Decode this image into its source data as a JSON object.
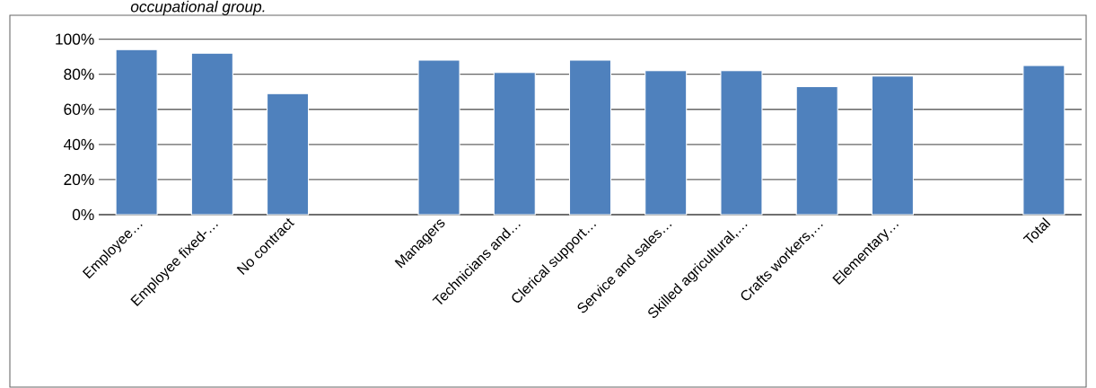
{
  "chart_data": {
    "type": "bar",
    "title": "occupational group.",
    "categories": [
      "Employee…",
      "Employee fixed-…",
      "No contract",
      null,
      "Managers",
      "Technicians and…",
      "Clerical support…",
      "Service and sales…",
      "Skilled agricultural,…",
      "Crafts workers,…",
      "Elementary…",
      null,
      "Total"
    ],
    "values": [
      94,
      92,
      69,
      null,
      88,
      81,
      88,
      82,
      82,
      73,
      79,
      null,
      85
    ],
    "color": "#4f81bd",
    "ylim": [
      0,
      100
    ],
    "yticks": [
      {
        "value": 0,
        "label": "0%"
      },
      {
        "value": 20,
        "label": "20%"
      },
      {
        "value": 40,
        "label": "40%"
      },
      {
        "value": 60,
        "label": "60%"
      },
      {
        "value": 80,
        "label": "80%"
      },
      {
        "value": 100,
        "label": "100%"
      }
    ],
    "grid": "y"
  }
}
